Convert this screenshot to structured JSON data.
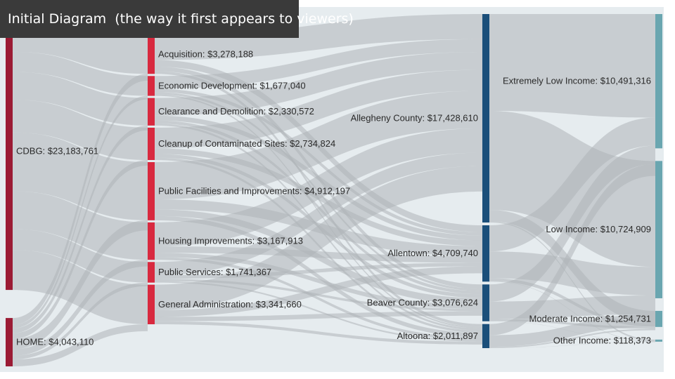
{
  "title_banner": "Initial Diagram  (the way it first appears to viewers)",
  "colors": {
    "source": "#9b1b34",
    "activity": "#d8293f",
    "location": "#1b4f7a",
    "income": "#6aa6b0",
    "link": "#aeb4b8",
    "background": "#e6ecef"
  },
  "chart_data": {
    "type": "sankey",
    "nodes": [
      {
        "id": "cdbg",
        "label": "CDBG: $23,183,761",
        "value": 23183761,
        "column": 0
      },
      {
        "id": "home",
        "label": "HOME: $4,043,110",
        "value": 4043110,
        "column": 0
      },
      {
        "id": "acq",
        "label": "Acquisition: $3,278,188",
        "value": 3278188,
        "column": 1
      },
      {
        "id": "econ",
        "label": "Economic Development: $1,677,040",
        "value": 1677040,
        "column": 1
      },
      {
        "id": "clear",
        "label": "Clearance and Demolition: $2,330,572",
        "value": 2330572,
        "column": 1
      },
      {
        "id": "cleanup",
        "label": "Cleanup of Contaminated Sites: $2,734,824",
        "value": 2734824,
        "column": 1
      },
      {
        "id": "pubfac",
        "label": "Public Facilities and Improvements: $4,912,197",
        "value": 4912197,
        "column": 1
      },
      {
        "id": "housing",
        "label": "Housing Improvements: $3,167,913",
        "value": 3167913,
        "column": 1
      },
      {
        "id": "pubsvc",
        "label": "Public Services: $1,741,367",
        "value": 1741367,
        "column": 1
      },
      {
        "id": "genadmin",
        "label": "General Administration: $3,341,660",
        "value": 3341660,
        "column": 1
      },
      {
        "id": "allegheny",
        "label": "Allegheny County: $17,428,610",
        "value": 17428610,
        "column": 2
      },
      {
        "id": "allentown",
        "label": "Allentown: $4,709,740",
        "value": 4709740,
        "column": 2
      },
      {
        "id": "beaver",
        "label": "Beaver County: $3,076,624",
        "value": 3076624,
        "column": 2
      },
      {
        "id": "altoona",
        "label": "Altoona: $2,011,897",
        "value": 2011897,
        "column": 2
      },
      {
        "id": "extlow",
        "label": "Extremely Low Income: $10,491,316",
        "value": 10491316,
        "column": 3
      },
      {
        "id": "low",
        "label": "Low Income: $10,724,909",
        "value": 10724909,
        "column": 3
      },
      {
        "id": "moderate",
        "label": "Moderate Income: $1,254,731",
        "value": 1254731,
        "column": 3
      },
      {
        "id": "other",
        "label": "Other Income: $118,373",
        "value": 118373,
        "column": 3
      }
    ]
  }
}
